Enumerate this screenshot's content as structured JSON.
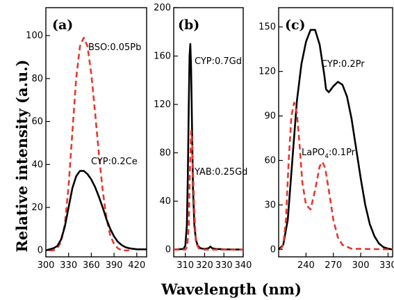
{
  "chart_data": {
    "type": "line",
    "xlabel": "Wavelength (nm)",
    "ylabel": "Relative intensity (a.u.)",
    "colors": {
      "black_series": "#000000",
      "red_series": "#e8372c"
    },
    "panels": [
      {
        "panel_label": "(a)",
        "xlim": [
          300,
          433
        ],
        "ylim": [
          -3,
          113
        ],
        "xticks": [
          300,
          330,
          360,
          390,
          420
        ],
        "yticks": [
          0,
          20,
          40,
          60,
          80,
          100
        ],
        "series": [
          {
            "name": "BSO:0.05Pb",
            "style": "dashed",
            "color": "#e8372c",
            "x": [
              305,
              310,
              315,
              320,
              325,
              330,
              335,
              340,
              345,
              350,
              355,
              360,
              365,
              370,
              375,
              380,
              385,
              390,
              395,
              400,
              410
            ],
            "y": [
              0,
              0,
              1,
              4,
              12,
              30,
              55,
              80,
              95,
              99,
              95,
              82,
              64,
              45,
              28,
              15,
              7,
              3,
              1,
              0,
              0
            ]
          },
          {
            "name": "CYP:0.2Ce",
            "style": "solid",
            "color": "#000000",
            "x": [
              300,
              310,
              315,
              320,
              325,
              330,
              335,
              340,
              345,
              350,
              355,
              360,
              365,
              370,
              375,
              380,
              385,
              390,
              395,
              400,
              405,
              410,
              420,
              433
            ],
            "y": [
              0,
              1,
              2,
              5,
              11,
              20,
              29,
              34.5,
              37,
              37,
              35.5,
              33,
              29.5,
              25,
              20,
              14.5,
              10,
              6.5,
              4,
              2.5,
              1.5,
              1,
              0.5,
              0.5
            ]
          }
        ],
        "annotations": [
          "BSO:0.05Pb",
          "CYP:0.2Ce"
        ]
      },
      {
        "panel_label": "(b)",
        "xlim": [
          304,
          340
        ],
        "ylim": [
          -6,
          200
        ],
        "xticks": [
          310,
          320,
          330,
          340
        ],
        "yticks": [
          0,
          40,
          80,
          120,
          160,
          200
        ],
        "series": [
          {
            "name": "CYP:0.7Gd",
            "style": "solid",
            "color": "#000000",
            "x": [
              304,
              309,
              310,
              310.8,
              311.3,
              311.8,
              312.2,
              312.6,
              313,
              313.5,
              314,
              314.7,
              315.5,
              316.5,
              318,
              320,
              322,
              323,
              324,
              326,
              330,
              340
            ],
            "y": [
              0,
              0.5,
              3,
              20,
              60,
              120,
              160,
              170,
              150,
              100,
              50,
              20,
              8,
              3,
              1,
              0.5,
              1,
              2.5,
              1,
              0.5,
              0.2,
              0
            ]
          },
          {
            "name": "YAB:0.25Gd",
            "style": "dashed",
            "color": "#e8372c",
            "x": [
              304,
              310,
              311,
              311.8,
              312.4,
              313,
              313.5,
              314,
              314.6,
              315.3,
              316,
              317,
              320,
              340
            ],
            "y": [
              0,
              0,
              2,
              20,
              65,
              98,
              90,
              65,
              35,
              12,
              4,
              1,
              0,
              0
            ]
          }
        ],
        "annotations": [
          "CYP:0.7Gd",
          "YAB:0.25Gd"
        ]
      },
      {
        "panel_label": "(c)",
        "xlim": [
          210,
          335
        ],
        "ylim": [
          -5,
          163
        ],
        "xticks": [
          240,
          270,
          300,
          330
        ],
        "yticks": [
          0,
          30,
          60,
          90,
          120,
          150
        ],
        "series": [
          {
            "name": "CYP:0.2Pr",
            "style": "solid",
            "color": "#000000",
            "x": [
              210,
              215,
              220,
              225,
              230,
              235,
              240,
              245,
              250,
              255,
              260,
              262,
              265,
              270,
              275,
              280,
              285,
              290,
              295,
              300,
              305,
              310,
              315,
              320,
              325,
              330,
              335
            ],
            "y": [
              0,
              3,
              20,
              60,
              100,
              125,
              140,
              148,
              148,
              138,
              118,
              108,
              106,
              110,
              113,
              111,
              103,
              88,
              68,
              48,
              30,
              17,
              9,
              4,
              1.5,
              0.5,
              0
            ]
          },
          {
            "name": "LaPO4:0.1Pr",
            "style": "dashed",
            "color": "#e8372c",
            "x": [
              212,
              215,
              218,
              221,
              224,
              227,
              230,
              233,
              236,
              240,
              245,
              250,
              255,
              258,
              261,
              265,
              270,
              275,
              280,
              290,
              335
            ],
            "y": [
              0,
              3,
              20,
              60,
              90,
              99,
              92,
              70,
              45,
              30,
              27,
              40,
              56,
              59,
              55,
              40,
              20,
              8,
              3,
              0.5,
              0
            ]
          }
        ],
        "annotations": [
          "CYP:0.2Pr",
          "LaPO",
          "4",
          ":0.1Pr"
        ]
      }
    ]
  }
}
